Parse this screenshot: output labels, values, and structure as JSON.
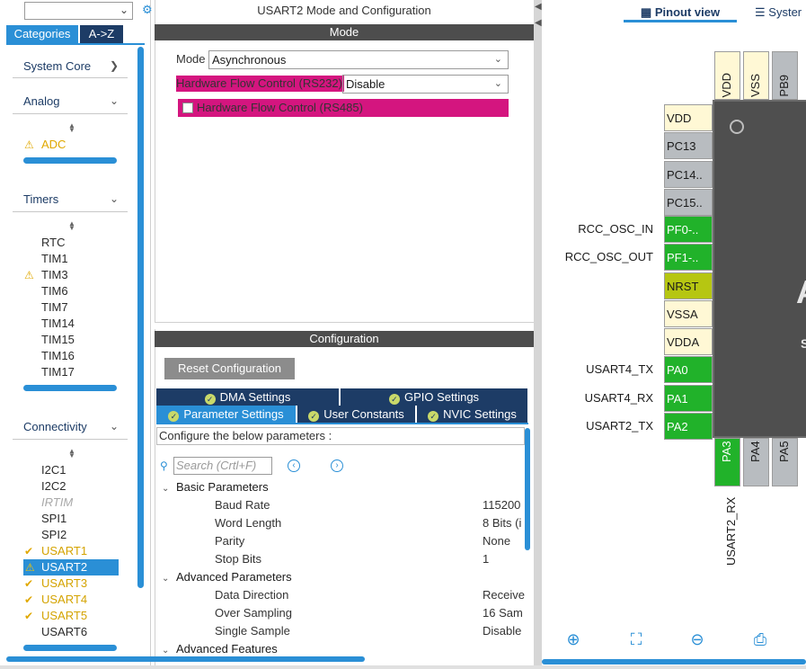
{
  "left_panel": {
    "search_placeholder": "",
    "tabs": {
      "categories": "Categories",
      "atoz": "A->Z"
    },
    "categories": {
      "system_core": "System Core",
      "analog": {
        "label": "Analog",
        "items": [
          "ADC"
        ]
      },
      "timers": {
        "label": "Timers",
        "items": [
          "RTC",
          "TIM1",
          "TIM3",
          "TIM6",
          "TIM7",
          "TIM14",
          "TIM15",
          "TIM16",
          "TIM17"
        ]
      },
      "connectivity": {
        "label": "Connectivity",
        "items": [
          "I2C1",
          "I2C2",
          "IRTIM",
          "SPI1",
          "SPI2",
          "USART1",
          "USART2",
          "USART3",
          "USART4",
          "USART5",
          "USART6"
        ]
      }
    }
  },
  "mode_panel": {
    "title": "USART2 Mode and Configuration",
    "mode_bar": "Mode",
    "mode_label": "Mode",
    "mode_value": "Asynchronous",
    "hfc232_label": "Hardware Flow Control (RS232)",
    "hfc232_value": "Disable",
    "hfc485_label": "Hardware Flow Control (RS485)"
  },
  "config_panel": {
    "bar": "Configuration",
    "reset_button": "Reset Configuration",
    "tabs": {
      "dma": "DMA Settings",
      "gpio": "GPIO Settings",
      "parameter": "Parameter Settings",
      "user_constants": "User Constants",
      "nvic": "NVIC Settings"
    },
    "help_text": "Configure the below parameters :",
    "search_placeholder": "Search (Crtl+F)",
    "groups": {
      "basic": "Basic Parameters",
      "advanced": "Advanced Parameters",
      "advanced_features": "Advanced Features"
    },
    "params": [
      {
        "name": "Baud Rate",
        "value": "115200"
      },
      {
        "name": "Word Length",
        "value": "8 Bits (i"
      },
      {
        "name": "Parity",
        "value": "None"
      },
      {
        "name": "Stop Bits",
        "value": "1"
      },
      {
        "name": "Data Direction",
        "value": "Receive"
      },
      {
        "name": "Over Sampling",
        "value": "16 Sam"
      },
      {
        "name": "Single Sample",
        "value": "Disable"
      }
    ]
  },
  "pinout": {
    "tabs": {
      "pinout_view": "Pinout view",
      "system_view": "Syster"
    },
    "top_pins": [
      "VDD",
      "VSS",
      "PB9"
    ],
    "left_pins": [
      "VDD",
      "PC13",
      "PC14..",
      "PC15..",
      "PF0-..",
      "PF1-..",
      "NRST",
      "VSSA",
      "VDDA",
      "PA0",
      "PA1",
      "PA2"
    ],
    "bottom_pins": [
      "PA3",
      "PA4",
      "PA5"
    ],
    "signals": {
      "pf0": "RCC_OSC_IN",
      "pf1": "RCC_OSC_OUT",
      "pa0": "USART4_TX",
      "pa1": "USART4_RX",
      "pa2": "USART2_TX",
      "pa3": "USART2_RX"
    },
    "chip_text": [
      "A",
      "S"
    ]
  },
  "colors": {
    "accent": "#2a8fd6",
    "navy": "#1d3c66",
    "conflict_magenta": "#d4157f",
    "pin_green": "#21b22a",
    "pin_olive": "#b6c612",
    "pin_cream": "#fff8d5",
    "warning_yellow": "#e0a800"
  }
}
